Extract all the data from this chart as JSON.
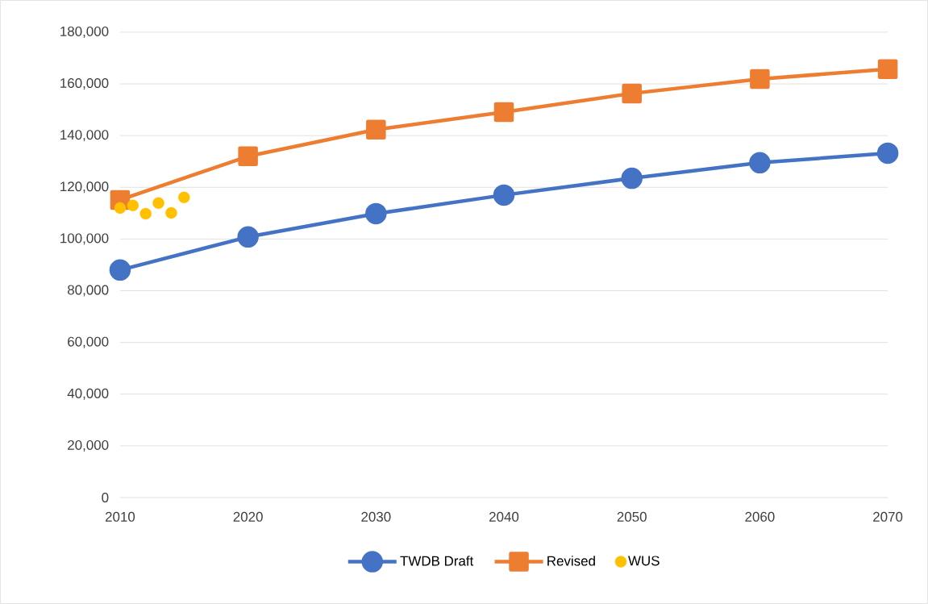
{
  "chart_data": {
    "type": "line",
    "x": [
      2010,
      2020,
      2030,
      2040,
      2050,
      2060,
      2070
    ],
    "series": [
      {
        "name": "TWDB Draft",
        "color": "#4472c4",
        "marker": "circle",
        "values": [
          88000,
          100800,
          109800,
          117000,
          123500,
          129500,
          133200
        ]
      },
      {
        "name": "Revised",
        "color": "#ed7d31",
        "marker": "square",
        "values": [
          115100,
          132000,
          142300,
          149100,
          156300,
          161900,
          165700
        ]
      },
      {
        "name": "WUS",
        "color": "#ffc000",
        "type": "scatter",
        "marker": "circle",
        "x": [
          2010,
          2011,
          2012,
          2013,
          2014,
          2015
        ],
        "values": [
          112000,
          113000,
          109800,
          113900,
          110100,
          116100
        ]
      }
    ],
    "xlim": [
      2010,
      2070
    ],
    "ylim": [
      0,
      180000
    ],
    "xticks": [
      2010,
      2020,
      2030,
      2040,
      2050,
      2060,
      2070
    ],
    "yticks": [
      {
        "value": 0,
        "label": "0"
      },
      {
        "value": 20000,
        "label": "20,000"
      },
      {
        "value": 40000,
        "label": "40,000"
      },
      {
        "value": 60000,
        "label": "60,000"
      },
      {
        "value": 80000,
        "label": "80,000"
      },
      {
        "value": 100000,
        "label": "100,000"
      },
      {
        "value": 120000,
        "label": "120,000"
      },
      {
        "value": 140000,
        "label": "140,000"
      },
      {
        "value": 160000,
        "label": "160,000"
      },
      {
        "value": 180000,
        "label": "180,000"
      }
    ],
    "grid": "y",
    "legend": "bottom"
  }
}
